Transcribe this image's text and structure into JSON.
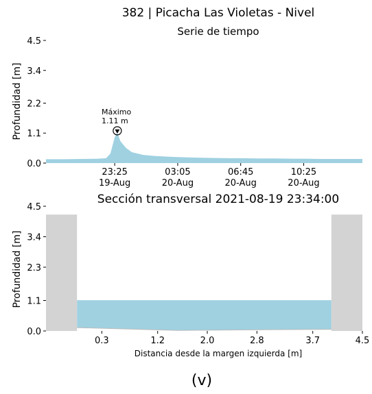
{
  "caption": "(v)",
  "chart_data": [
    {
      "type": "area",
      "title": "382 | Picacha Las Violetas - Nivel",
      "subtitle": "Serie de tiempo",
      "ylabel": "Profundidad [m]",
      "xlabel": "",
      "ylim": [
        0,
        4.5
      ],
      "yticks": [
        "0.0",
        "1.1",
        "2.2",
        "3.4",
        "4.5"
      ],
      "x_tick_labels": [
        {
          "time": "23:25",
          "date": "19-Aug"
        },
        {
          "time": "03:05",
          "date": "20-Aug"
        },
        {
          "time": "06:45",
          "date": "20-Aug"
        },
        {
          "time": "10:25",
          "date": "20-Aug"
        }
      ],
      "annotation": {
        "label": "Máximo",
        "value_text": "1.11 m",
        "value": 1.11
      },
      "color": "#9fd1e1",
      "series": [
        {
          "x": [
            "19-Aug 19:25",
            "19-Aug 20:25",
            "19-Aug 21:25",
            "19-Aug 22:25",
            "19-Aug 22:55",
            "19-Aug 23:10",
            "19-Aug 23:25",
            "19-Aug 23:34",
            "19-Aug 23:45",
            "20-Aug 00:05",
            "20-Aug 00:25",
            "20-Aug 01:05",
            "20-Aug 01:45",
            "20-Aug 02:25",
            "20-Aug 03:05",
            "20-Aug 04:05",
            "20-Aug 05:05",
            "20-Aug 06:05",
            "20-Aug 06:45",
            "20-Aug 07:45",
            "20-Aug 08:45",
            "20-Aug 09:45",
            "20-Aug 10:25",
            "20-Aug 11:25",
            "20-Aug 12:25",
            "20-Aug 13:25",
            "20-Aug 13:50"
          ],
          "values": [
            0.14,
            0.14,
            0.15,
            0.16,
            0.18,
            0.35,
            0.95,
            1.11,
            0.8,
            0.55,
            0.4,
            0.3,
            0.26,
            0.24,
            0.22,
            0.2,
            0.19,
            0.18,
            0.18,
            0.17,
            0.17,
            0.16,
            0.16,
            0.15,
            0.15,
            0.15,
            0.15
          ]
        }
      ]
    },
    {
      "type": "area",
      "title": "Sección transversal 2021-08-19 23:34:00",
      "xlabel": "Distancia desde la margen izquierda [m]",
      "ylabel": "Profundidad [m]",
      "xlim": [
        -0.6,
        4.5
      ],
      "ylim": [
        0,
        4.5
      ],
      "xticks": [
        0.3,
        1.2,
        2.0,
        2.8,
        3.7,
        4.5
      ],
      "xtick_labels": [
        "0.3",
        "1.2",
        "2.0",
        "2.8",
        "3.7",
        "4.5"
      ],
      "yticks": [
        "0.0",
        "1.1",
        "2.3",
        "3.4",
        "4.5"
      ],
      "banks": [
        {
          "x": [
            -0.6,
            -0.1
          ],
          "height": 4.2
        },
        {
          "x": [
            4.0,
            4.5
          ],
          "height": 4.2
        }
      ],
      "water_level": 1.11,
      "bed": {
        "x": [
          -0.1,
          1.5,
          4.0
        ],
        "y": [
          0.12,
          0.02,
          0.06
        ]
      },
      "colors": {
        "water": "#9fd1e1",
        "bank": "#d3d3d3"
      }
    }
  ]
}
